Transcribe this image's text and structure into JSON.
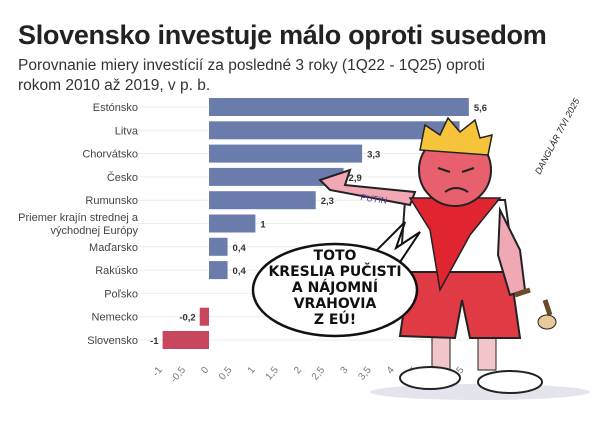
{
  "chart_data": {
    "type": "bar",
    "orientation": "horizontal",
    "title": "Slovensko investuje málo  oproti susedom",
    "subtitle": "Porovnanie miery investícií za posledné 3 roky (1Q22 - 1Q25) oproti rokom 2010 až 2019, v p. b.",
    "categories": [
      "Estónsko",
      "Litva",
      "Chorvátsko",
      "Česko",
      "Rumunsko",
      "Priemer krajín strednej a východnej Európy",
      "Maďarsko",
      "Rakúsko",
      "Poľsko",
      "Nemecko",
      "Slovensko"
    ],
    "category_lines": [
      [
        "Estónsko"
      ],
      [
        "Litva"
      ],
      [
        "Chorvátsko"
      ],
      [
        "Česko"
      ],
      [
        "Rumunsko"
      ],
      [
        "Priemer krajín strednej a",
        "východnej Európy"
      ],
      [
        "Maďarsko"
      ],
      [
        "Rakúsko"
      ],
      [
        "Poľsko"
      ],
      [
        "Nemecko"
      ],
      [
        "Slovensko"
      ]
    ],
    "values": [
      5.6,
      5.4,
      3.3,
      2.9,
      2.3,
      1,
      0.4,
      0.4,
      0,
      -0.2,
      -1
    ],
    "data_labels": [
      "5,6",
      "5,4",
      "3,3",
      "2,9",
      "2,3",
      "1",
      "0,4",
      "0,4",
      "",
      "-0,2",
      "-1"
    ],
    "xlim": [
      -1,
      5.5
    ],
    "xticks": [
      -1,
      -0.5,
      0,
      0.5,
      1,
      1.5,
      2,
      2.5,
      3,
      3.5,
      4,
      4.5,
      5,
      5.5
    ],
    "xtick_labels": [
      "-1",
      "-0,5",
      "0",
      "0,5",
      "1",
      "1,5",
      "2",
      "2,5",
      "3",
      "3,5",
      "4",
      "4,5",
      "5",
      "5,5"
    ],
    "grid": "horizontal row lines",
    "colors": {
      "positive": "#6a7cab",
      "negative": "#c8475e"
    }
  },
  "cartoon": {
    "speech_bubble": [
      "TOTO",
      "KRESLIA PUČISTI",
      "A NÁJOMNÍ",
      "VRAHOVIA",
      "Z EÚ!"
    ],
    "tattoo": "PUTIN",
    "signature": "DANGLÁR 7/VI 2025"
  }
}
